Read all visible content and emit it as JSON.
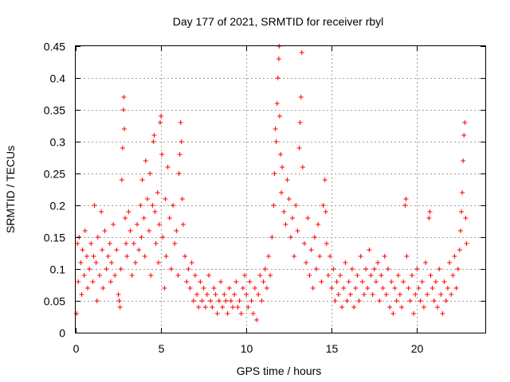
{
  "chart_data": {
    "type": "scatter",
    "title": "Day 177 of 2021, SRMTID for receiver rbyl",
    "xlabel": "GPS time / hours",
    "ylabel": "SRMTID / TECUs",
    "xlim": [
      0,
      24
    ],
    "ylim": [
      0,
      0.45
    ],
    "xticks": [
      0,
      5,
      10,
      15,
      20
    ],
    "yticks": [
      0,
      0.05,
      0.1,
      0.15,
      0.2,
      0.25,
      0.3,
      0.35,
      0.4,
      0.45
    ],
    "xtick_labels": [
      "0",
      "5",
      "10",
      "15",
      "20"
    ],
    "ytick_labels": [
      "0",
      "0.05",
      "0.1",
      "0.15",
      "0.2",
      "0.25",
      "0.3",
      "0.35",
      "0.4",
      "0.45"
    ],
    "grid": true,
    "marker": "+",
    "color": "#ff0000",
    "series": [
      {
        "points": [
          [
            0.05,
            0.03
          ],
          [
            0.1,
            0.14
          ],
          [
            0.15,
            0.08
          ],
          [
            0.2,
            0.15
          ],
          [
            0.3,
            0.11
          ],
          [
            0.35,
            0.06
          ],
          [
            0.4,
            0.13
          ],
          [
            0.5,
            0.09
          ],
          [
            0.55,
            0.16
          ],
          [
            0.65,
            0.12
          ],
          [
            0.7,
            0.07
          ],
          [
            0.8,
            0.1
          ],
          [
            0.9,
            0.14
          ],
          [
            1.0,
            0.08
          ],
          [
            1.05,
            0.12
          ],
          [
            1.1,
            0.2
          ],
          [
            1.2,
            0.11
          ],
          [
            1.25,
            0.05
          ],
          [
            1.3,
            0.15
          ],
          [
            1.4,
            0.09
          ],
          [
            1.5,
            0.19
          ],
          [
            1.55,
            0.13
          ],
          [
            1.6,
            0.07
          ],
          [
            1.7,
            0.16
          ],
          [
            1.8,
            0.1
          ],
          [
            1.9,
            0.12
          ],
          [
            2.0,
            0.14
          ],
          [
            2.05,
            0.08
          ],
          [
            2.1,
            0.11
          ],
          [
            2.2,
            0.17
          ],
          [
            2.3,
            0.09
          ],
          [
            2.4,
            0.13
          ],
          [
            2.5,
            0.06
          ],
          [
            2.55,
            0.05
          ],
          [
            2.6,
            0.04
          ],
          [
            2.65,
            0.1
          ],
          [
            2.7,
            0.24
          ],
          [
            2.75,
            0.29
          ],
          [
            2.8,
            0.35
          ],
          [
            2.82,
            0.37
          ],
          [
            2.85,
            0.32
          ],
          [
            2.9,
            0.18
          ],
          [
            2.95,
            0.14
          ],
          [
            3.0,
            0.12
          ],
          [
            3.1,
            0.19
          ],
          [
            3.2,
            0.16
          ],
          [
            3.3,
            0.09
          ],
          [
            3.4,
            0.14
          ],
          [
            3.5,
            0.11
          ],
          [
            3.6,
            0.17
          ],
          [
            3.7,
            0.13
          ],
          [
            3.8,
            0.2
          ],
          [
            3.85,
            0.15
          ],
          [
            3.9,
            0.24
          ],
          [
            4.0,
            0.18
          ],
          [
            4.05,
            0.12
          ],
          [
            4.1,
            0.27
          ],
          [
            4.2,
            0.21
          ],
          [
            4.3,
            0.16
          ],
          [
            4.35,
            0.25
          ],
          [
            4.4,
            0.09
          ],
          [
            4.5,
            0.2
          ],
          [
            4.55,
            0.3
          ],
          [
            4.6,
            0.31
          ],
          [
            4.65,
            0.19
          ],
          [
            4.7,
            0.14
          ],
          [
            4.8,
            0.22
          ],
          [
            4.85,
            0.11
          ],
          [
            4.9,
            0.17
          ],
          [
            4.95,
            0.33
          ],
          [
            5.0,
            0.34
          ],
          [
            5.05,
            0.28
          ],
          [
            5.1,
            0.15
          ],
          [
            5.2,
            0.07
          ],
          [
            5.25,
            0.21
          ],
          [
            5.3,
            0.12
          ],
          [
            5.4,
            0.26
          ],
          [
            5.5,
            0.18
          ],
          [
            5.6,
            0.1
          ],
          [
            5.7,
            0.2
          ],
          [
            5.8,
            0.14
          ],
          [
            5.9,
            0.16
          ],
          [
            6.0,
            0.09
          ],
          [
            6.05,
            0.25
          ],
          [
            6.1,
            0.28
          ],
          [
            6.15,
            0.33
          ],
          [
            6.2,
            0.3
          ],
          [
            6.25,
            0.21
          ],
          [
            6.3,
            0.17
          ],
          [
            6.4,
            0.12
          ],
          [
            6.5,
            0.08
          ],
          [
            6.6,
            0.1
          ],
          [
            6.7,
            0.07
          ],
          [
            6.8,
            0.11
          ],
          [
            6.9,
            0.05
          ],
          [
            7.0,
            0.09
          ],
          [
            7.1,
            0.06
          ],
          [
            7.2,
            0.04
          ],
          [
            7.3,
            0.08
          ],
          [
            7.4,
            0.05
          ],
          [
            7.5,
            0.07
          ],
          [
            7.6,
            0.04
          ],
          [
            7.7,
            0.06
          ],
          [
            7.8,
            0.09
          ],
          [
            7.9,
            0.05
          ],
          [
            8.0,
            0.04
          ],
          [
            8.1,
            0.07
          ],
          [
            8.2,
            0.06
          ],
          [
            8.3,
            0.03
          ],
          [
            8.4,
            0.05
          ],
          [
            8.5,
            0.08
          ],
          [
            8.6,
            0.04
          ],
          [
            8.7,
            0.06
          ],
          [
            8.8,
            0.05
          ],
          [
            8.9,
            0.03
          ],
          [
            9.0,
            0.07
          ],
          [
            9.1,
            0.05
          ],
          [
            9.2,
            0.04
          ],
          [
            9.3,
            0.06
          ],
          [
            9.4,
            0.08
          ],
          [
            9.5,
            0.04
          ],
          [
            9.6,
            0.05
          ],
          [
            9.7,
            0.03
          ],
          [
            9.8,
            0.07
          ],
          [
            9.9,
            0.09
          ],
          [
            10.0,
            0.06
          ],
          [
            10.1,
            0.04
          ],
          [
            10.2,
            0.08
          ],
          [
            10.3,
            0.05
          ],
          [
            10.4,
            0.03
          ],
          [
            10.5,
            0.07
          ],
          [
            10.6,
            0.02
          ],
          [
            10.7,
            0.06
          ],
          [
            10.8,
            0.09
          ],
          [
            10.9,
            0.05
          ],
          [
            11.0,
            0.08
          ],
          [
            11.1,
            0.1
          ],
          [
            11.2,
            0.07
          ],
          [
            11.3,
            0.12
          ],
          [
            11.4,
            0.09
          ],
          [
            11.5,
            0.15
          ],
          [
            11.6,
            0.2
          ],
          [
            11.65,
            0.25
          ],
          [
            11.7,
            0.32
          ],
          [
            11.75,
            0.3
          ],
          [
            11.8,
            0.36
          ],
          [
            11.85,
            0.4
          ],
          [
            11.9,
            0.43
          ],
          [
            11.92,
            0.45
          ],
          [
            11.95,
            0.34
          ],
          [
            12.0,
            0.28
          ],
          [
            12.05,
            0.22
          ],
          [
            12.1,
            0.26
          ],
          [
            12.2,
            0.19
          ],
          [
            12.3,
            0.17
          ],
          [
            12.4,
            0.24
          ],
          [
            12.5,
            0.21
          ],
          [
            12.6,
            0.15
          ],
          [
            12.7,
            0.18
          ],
          [
            12.8,
            0.12
          ],
          [
            12.9,
            0.2
          ],
          [
            13.0,
            0.16
          ],
          [
            13.1,
            0.29
          ],
          [
            13.15,
            0.33
          ],
          [
            13.2,
            0.37
          ],
          [
            13.25,
            0.44
          ],
          [
            13.3,
            0.26
          ],
          [
            13.4,
            0.14
          ],
          [
            13.5,
            0.11
          ],
          [
            13.6,
            0.18
          ],
          [
            13.7,
            0.09
          ],
          [
            13.8,
            0.13
          ],
          [
            13.9,
            0.07
          ],
          [
            14.0,
            0.15
          ],
          [
            14.1,
            0.1
          ],
          [
            14.2,
            0.17
          ],
          [
            14.3,
            0.12
          ],
          [
            14.4,
            0.08
          ],
          [
            14.5,
            0.2
          ],
          [
            14.6,
            0.24
          ],
          [
            14.65,
            0.19
          ],
          [
            14.7,
            0.14
          ],
          [
            14.8,
            0.09
          ],
          [
            14.9,
            0.12
          ],
          [
            15.0,
            0.07
          ],
          [
            15.1,
            0.1
          ],
          [
            15.2,
            0.05
          ],
          [
            15.3,
            0.08
          ],
          [
            15.4,
            0.06
          ],
          [
            15.5,
            0.09
          ],
          [
            15.6,
            0.04
          ],
          [
            15.7,
            0.07
          ],
          [
            15.8,
            0.11
          ],
          [
            15.9,
            0.05
          ],
          [
            16.0,
            0.08
          ],
          [
            16.1,
            0.06
          ],
          [
            16.2,
            0.1
          ],
          [
            16.3,
            0.04
          ],
          [
            16.4,
            0.07
          ],
          [
            16.5,
            0.09
          ],
          [
            16.6,
            0.05
          ],
          [
            16.7,
            0.12
          ],
          [
            16.8,
            0.08
          ],
          [
            16.9,
            0.06
          ],
          [
            17.0,
            0.1
          ],
          [
            17.1,
            0.07
          ],
          [
            17.2,
            0.13
          ],
          [
            17.3,
            0.09
          ],
          [
            17.4,
            0.06
          ],
          [
            17.5,
            0.1
          ],
          [
            17.6,
            0.08
          ],
          [
            17.7,
            0.11
          ],
          [
            17.8,
            0.05
          ],
          [
            17.9,
            0.09
          ],
          [
            18.0,
            0.07
          ],
          [
            18.1,
            0.12
          ],
          [
            18.2,
            0.06
          ],
          [
            18.3,
            0.1
          ],
          [
            18.4,
            0.04
          ],
          [
            18.5,
            0.08
          ],
          [
            18.6,
            0.03
          ],
          [
            18.7,
            0.07
          ],
          [
            18.8,
            0.05
          ],
          [
            18.9,
            0.09
          ],
          [
            19.0,
            0.06
          ],
          [
            19.1,
            0.04
          ],
          [
            19.2,
            0.08
          ],
          [
            19.3,
            0.2
          ],
          [
            19.35,
            0.21
          ],
          [
            19.4,
            0.12
          ],
          [
            19.5,
            0.07
          ],
          [
            19.6,
            0.05
          ],
          [
            19.7,
            0.09
          ],
          [
            19.8,
            0.03
          ],
          [
            19.9,
            0.06
          ],
          [
            20.0,
            0.1
          ],
          [
            20.1,
            0.07
          ],
          [
            20.2,
            0.05
          ],
          [
            20.3,
            0.08
          ],
          [
            20.4,
            0.04
          ],
          [
            20.5,
            0.11
          ],
          [
            20.6,
            0.06
          ],
          [
            20.7,
            0.18
          ],
          [
            20.75,
            0.19
          ],
          [
            20.8,
            0.09
          ],
          [
            20.9,
            0.07
          ],
          [
            21.0,
            0.05
          ],
          [
            21.1,
            0.08
          ],
          [
            21.2,
            0.04
          ],
          [
            21.3,
            0.1
          ],
          [
            21.4,
            0.06
          ],
          [
            21.5,
            0.03
          ],
          [
            21.6,
            0.08
          ],
          [
            21.7,
            0.05
          ],
          [
            21.8,
            0.07
          ],
          [
            21.9,
            0.11
          ],
          [
            22.0,
            0.06
          ],
          [
            22.1,
            0.09
          ],
          [
            22.2,
            0.12
          ],
          [
            22.3,
            0.07
          ],
          [
            22.4,
            0.1
          ],
          [
            22.5,
            0.13
          ],
          [
            22.55,
            0.16
          ],
          [
            22.6,
            0.19
          ],
          [
            22.65,
            0.22
          ],
          [
            22.7,
            0.27
          ],
          [
            22.75,
            0.31
          ],
          [
            22.8,
            0.33
          ],
          [
            22.85,
            0.18
          ],
          [
            22.9,
            0.14
          ]
        ]
      }
    ]
  }
}
